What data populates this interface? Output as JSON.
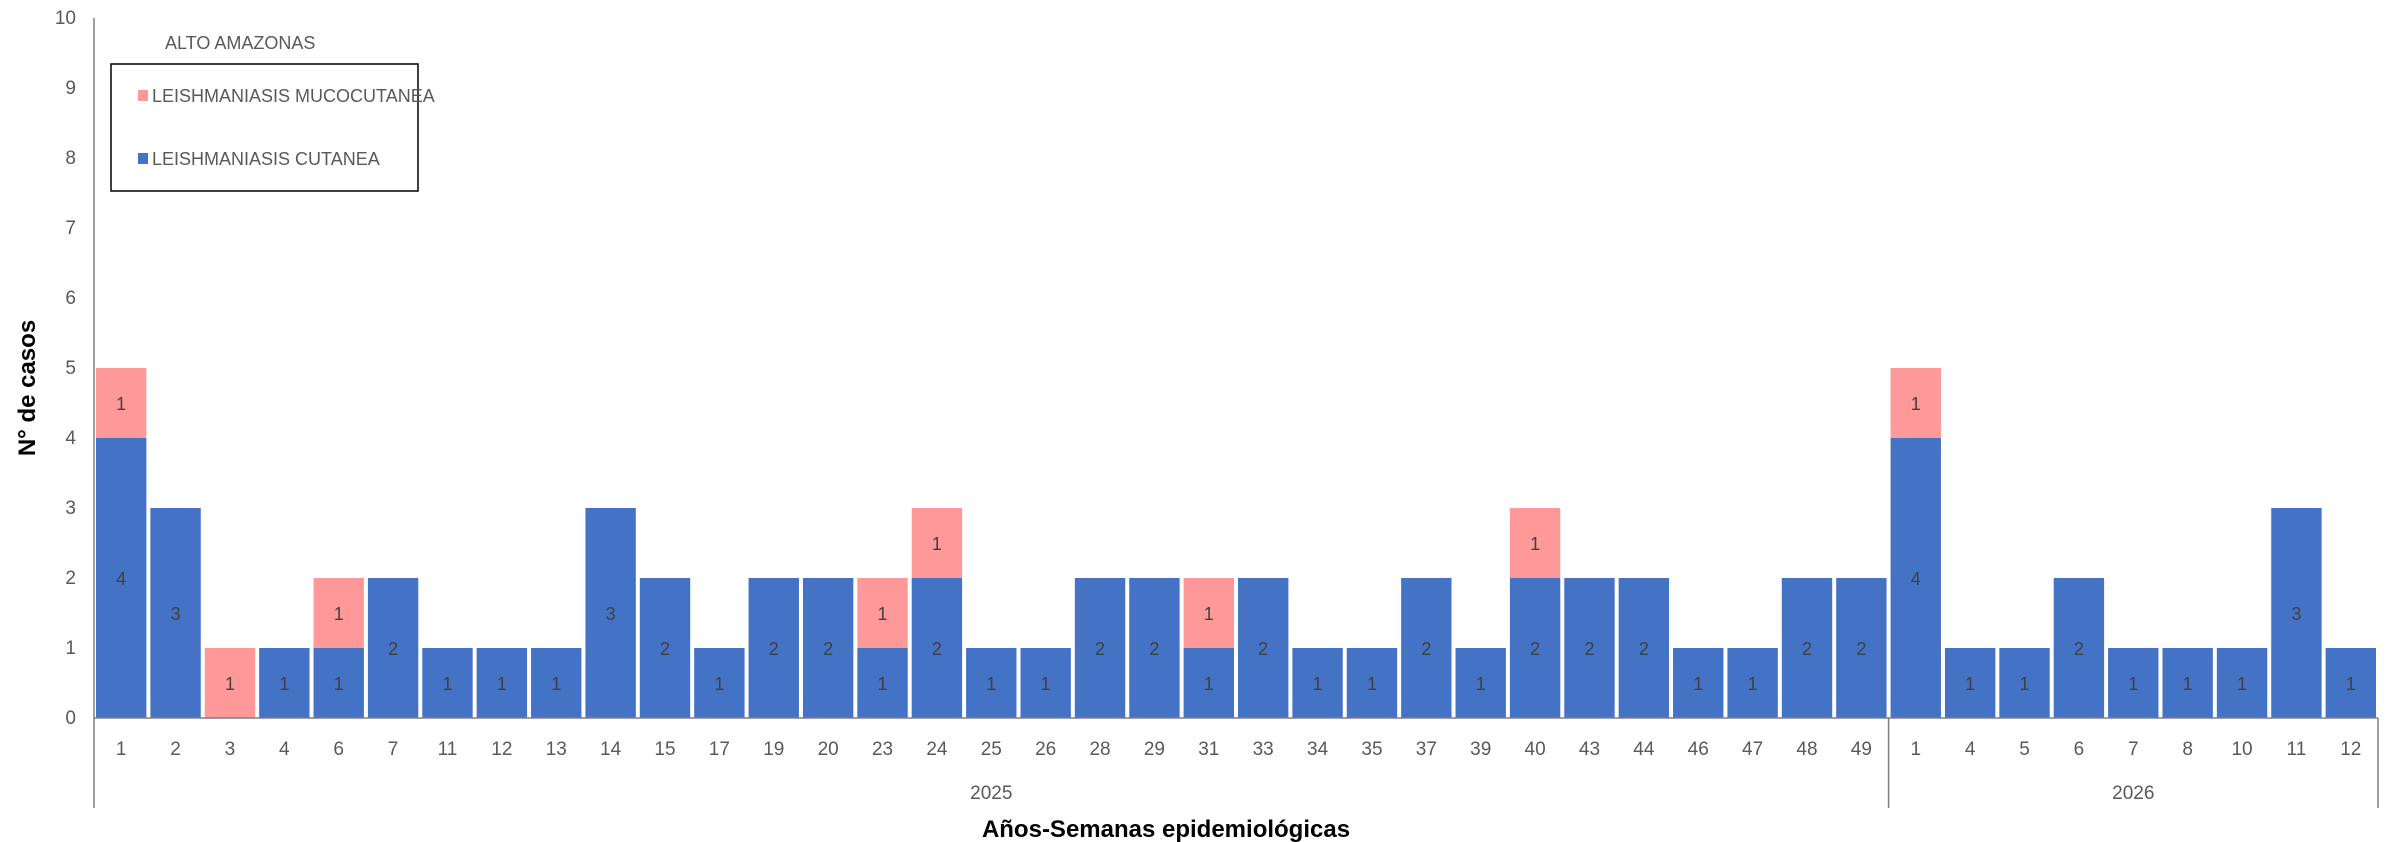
{
  "chart_data": {
    "type": "bar",
    "stacked": true,
    "title": "ALTO AMAZONAS",
    "xlabel": "Años-Semanas epidemiológicas",
    "ylabel": "N° de casos",
    "ylim": [
      0,
      10
    ],
    "yticks": [
      0,
      1,
      2,
      3,
      4,
      5,
      6,
      7,
      8,
      9,
      10
    ],
    "grid": false,
    "legend_position": "top-left",
    "groups": [
      {
        "label": "2025",
        "count": 33
      },
      {
        "label": "2026",
        "count": 9
      }
    ],
    "categories": [
      "1",
      "2",
      "3",
      "4",
      "6",
      "7",
      "11",
      "12",
      "13",
      "14",
      "15",
      "17",
      "19",
      "20",
      "23",
      "24",
      "25",
      "26",
      "28",
      "29",
      "31",
      "33",
      "34",
      "35",
      "37",
      "39",
      "40",
      "43",
      "44",
      "46",
      "47",
      "48",
      "49",
      "1",
      "4",
      "5",
      "6",
      "7",
      "8",
      "10",
      "11",
      "12"
    ],
    "series": [
      {
        "name": "LEISHMANIASIS CUTANEA",
        "color": "#4472c4",
        "values": [
          4,
          3,
          0,
          1,
          1,
          2,
          1,
          1,
          1,
          3,
          2,
          1,
          2,
          2,
          1,
          2,
          1,
          1,
          2,
          2,
          1,
          2,
          1,
          1,
          2,
          1,
          2,
          2,
          2,
          1,
          1,
          2,
          2,
          4,
          1,
          1,
          2,
          1,
          1,
          1,
          3,
          1
        ]
      },
      {
        "name": "LEISHMANIASIS MUCOCUTANEA",
        "color": "#ff9999",
        "values": [
          1,
          0,
          1,
          0,
          1,
          0,
          0,
          0,
          0,
          0,
          0,
          0,
          0,
          0,
          1,
          1,
          0,
          0,
          0,
          0,
          1,
          0,
          0,
          0,
          0,
          0,
          1,
          0,
          0,
          0,
          0,
          0,
          0,
          1,
          0,
          0,
          0,
          0,
          0,
          0,
          0,
          0
        ]
      }
    ],
    "legend_order": [
      "LEISHMANIASIS MUCOCUTANEA",
      "LEISHMANIASIS CUTANEA"
    ]
  }
}
